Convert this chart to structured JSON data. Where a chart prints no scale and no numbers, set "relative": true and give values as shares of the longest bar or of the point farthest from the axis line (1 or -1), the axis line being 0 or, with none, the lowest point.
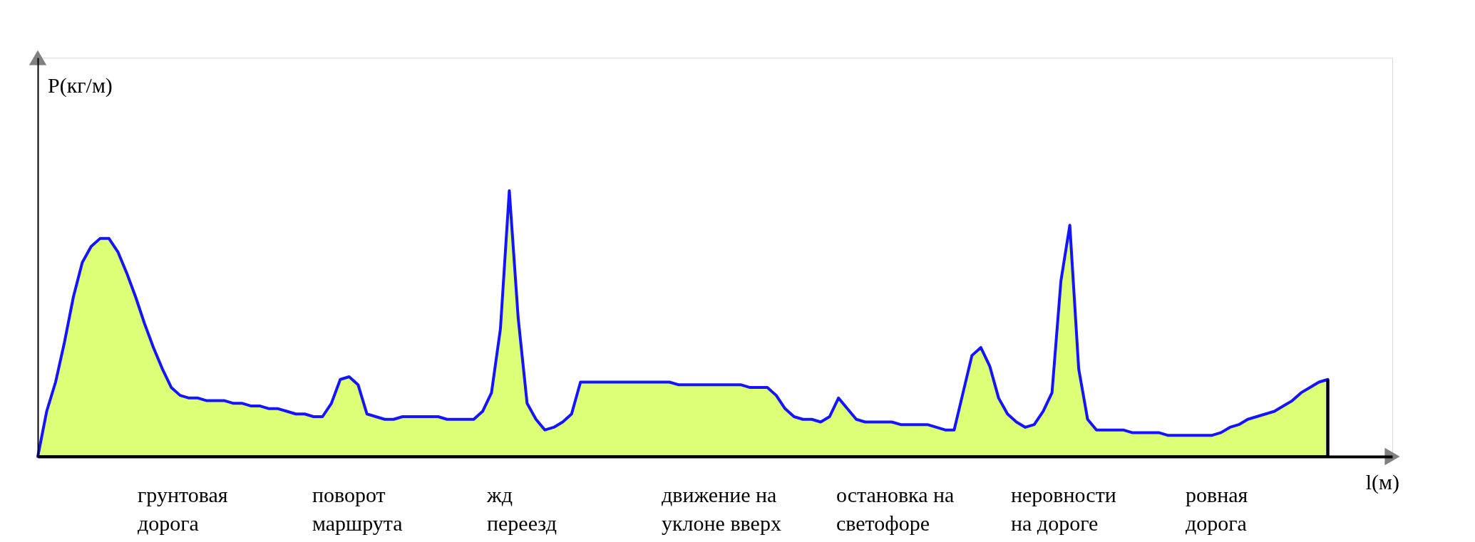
{
  "chart_data": {
    "type": "area",
    "relative": true,
    "tick_labels": false,
    "ylabel": "P(кг/м)",
    "xlabel": "l(м)",
    "categories": [
      null,
      null,
      null,
      null,
      null,
      null,
      null,
      null,
      null,
      null,
      null,
      null,
      null,
      null,
      null,
      null,
      null,
      null,
      null,
      null,
      null,
      null,
      null,
      null,
      null,
      null,
      null,
      null,
      null,
      null,
      null,
      null,
      null,
      null,
      null,
      null,
      null,
      null,
      null,
      null,
      null,
      null,
      null,
      null,
      null,
      null,
      null,
      null,
      null,
      null,
      null,
      null,
      null,
      null,
      null,
      null,
      null,
      null,
      null,
      null,
      null,
      null,
      null,
      null,
      null,
      null,
      null,
      null,
      null,
      null,
      null,
      null,
      null,
      null,
      null,
      null,
      null,
      null,
      null,
      null,
      null,
      null,
      null,
      null,
      null,
      null,
      null,
      null,
      null,
      null,
      null,
      null,
      null,
      null,
      null,
      null,
      null,
      null,
      null,
      null,
      null,
      null,
      null,
      null,
      null,
      null,
      null,
      null,
      null,
      null,
      null,
      null,
      null,
      null,
      null,
      null,
      null,
      null,
      null,
      null,
      null,
      null,
      null,
      null,
      null,
      null,
      null,
      null,
      null,
      null,
      null,
      null,
      null,
      null,
      null,
      null,
      null,
      null,
      null,
      null,
      null,
      null,
      null,
      null,
      null,
      null
    ],
    "series": [
      {
        "color": "#1414ff",
        "values": [
          0,
          0.17,
          0.28,
          0.43,
          0.6,
          0.73,
          0.79,
          0.82,
          0.82,
          0.77,
          0.69,
          0.6,
          0.5,
          0.41,
          0.33,
          0.26,
          0.23,
          0.22,
          0.22,
          0.21,
          0.21,
          0.21,
          0.2,
          0.2,
          0.19,
          0.19,
          0.18,
          0.18,
          0.17,
          0.16,
          0.16,
          0.15,
          0.15,
          0.2,
          0.29,
          0.3,
          0.27,
          0.16,
          0.15,
          0.14,
          0.14,
          0.15,
          0.15,
          0.15,
          0.15,
          0.15,
          0.14,
          0.14,
          0.14,
          0.14,
          0.17,
          0.24,
          0.48,
          1,
          0.52,
          0.2,
          0.14,
          0.1,
          0.11,
          0.13,
          0.16,
          0.28,
          0.28,
          0.28,
          0.28,
          0.28,
          0.28,
          0.28,
          0.28,
          0.28,
          0.28,
          0.28,
          0.27,
          0.27,
          0.27,
          0.27,
          0.27,
          0.27,
          0.27,
          0.27,
          0.26,
          0.26,
          0.26,
          0.23,
          0.18,
          0.15,
          0.14,
          0.14,
          0.13,
          0.15,
          0.22,
          0.18,
          0.14,
          0.13,
          0.13,
          0.13,
          0.13,
          0.12,
          0.12,
          0.12,
          0.12,
          0.11,
          0.1,
          0.1,
          0.24,
          0.38,
          0.41,
          0.34,
          0.22,
          0.16,
          0.13,
          0.11,
          0.12,
          0.17,
          0.24,
          0.66,
          0.87,
          0.33,
          0.14,
          0.1,
          0.1,
          0.1,
          0.1,
          0.09,
          0.09,
          0.09,
          0.09,
          0.08,
          0.08,
          0.08,
          0.08,
          0.08,
          0.08,
          0.09,
          0.11,
          0.12,
          0.14,
          0.15,
          0.16,
          0.17,
          0.19,
          0.21,
          0.24,
          0.26,
          0.28,
          0.29
        ]
      }
    ],
    "annotations": [
      "грунтовая\nдорога",
      "поворот\nмаршрута",
      "жд\nпереезд",
      "движение на\nуклоне вверх",
      "остановка на\nсветофоре",
      "неровности\nна дороге",
      "ровная\nдорога"
    ]
  }
}
